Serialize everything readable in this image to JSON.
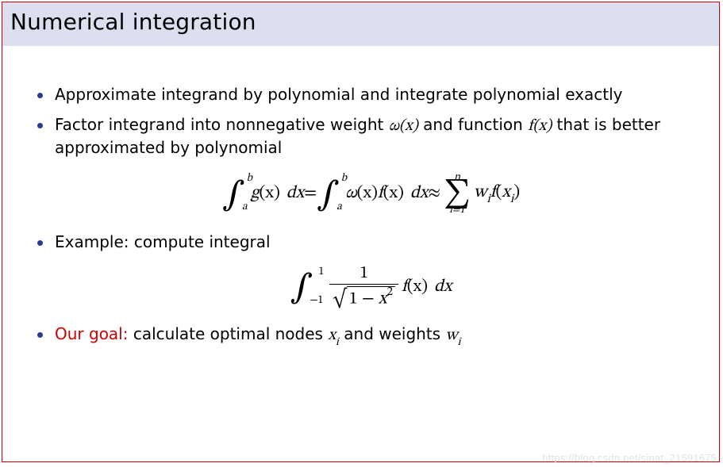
{
  "title": "Numerical integration",
  "bullets": {
    "b1": "Approximate integrand by polynomial and integrate polynomial exactly",
    "b2_pre": "Factor integrand into nonnegative weight ",
    "b2_w": "ω(x)",
    "b2_mid": " and function ",
    "b2_f": "f(x)",
    "b2_post": " that is better approximated by polynomial",
    "b3": "Example: compute integral",
    "b4_label": "Our goal:",
    "b4_rest": " calculate optimal nodes ",
    "b4_xi": "x",
    "b4_xi_sub": "i",
    "b4_and": " and weights ",
    "b4_wi": "w",
    "b4_wi_sub": "i"
  },
  "eq1": {
    "int1_lower": "a",
    "int1_upper": "b",
    "g": "g",
    "paren_x": "(x)",
    "dx": "dx",
    "eq": " = ",
    "int2_lower": "a",
    "int2_upper": "b",
    "omega": "ω",
    "f": "f",
    "approx": " ≈ ",
    "sum_top": "n",
    "sum_bot": "i=1",
    "w": "w",
    "sub_i": "i",
    "x": "x"
  },
  "eq2": {
    "int_lower": "−1",
    "int_upper": "1",
    "num": "1",
    "one": "1",
    "minus": " − ",
    "x": "x",
    "sq": "2",
    "f": "f",
    "paren_x": "(x)",
    "dx": "dx"
  },
  "colors": {
    "title_bg": "#dcdff0",
    "bullet_color": "#2a3b8f",
    "border_color": "#d00000",
    "goal_color": "#d00000",
    "text_color": "#000000",
    "watermark_color": "#e2e2e2"
  },
  "typography": {
    "title_fontsize": 28,
    "body_fontsize": 20,
    "math_fontsize": 22,
    "watermark_fontsize": 13
  },
  "watermark": "https://blog.csdn.net/sinat_21591675"
}
